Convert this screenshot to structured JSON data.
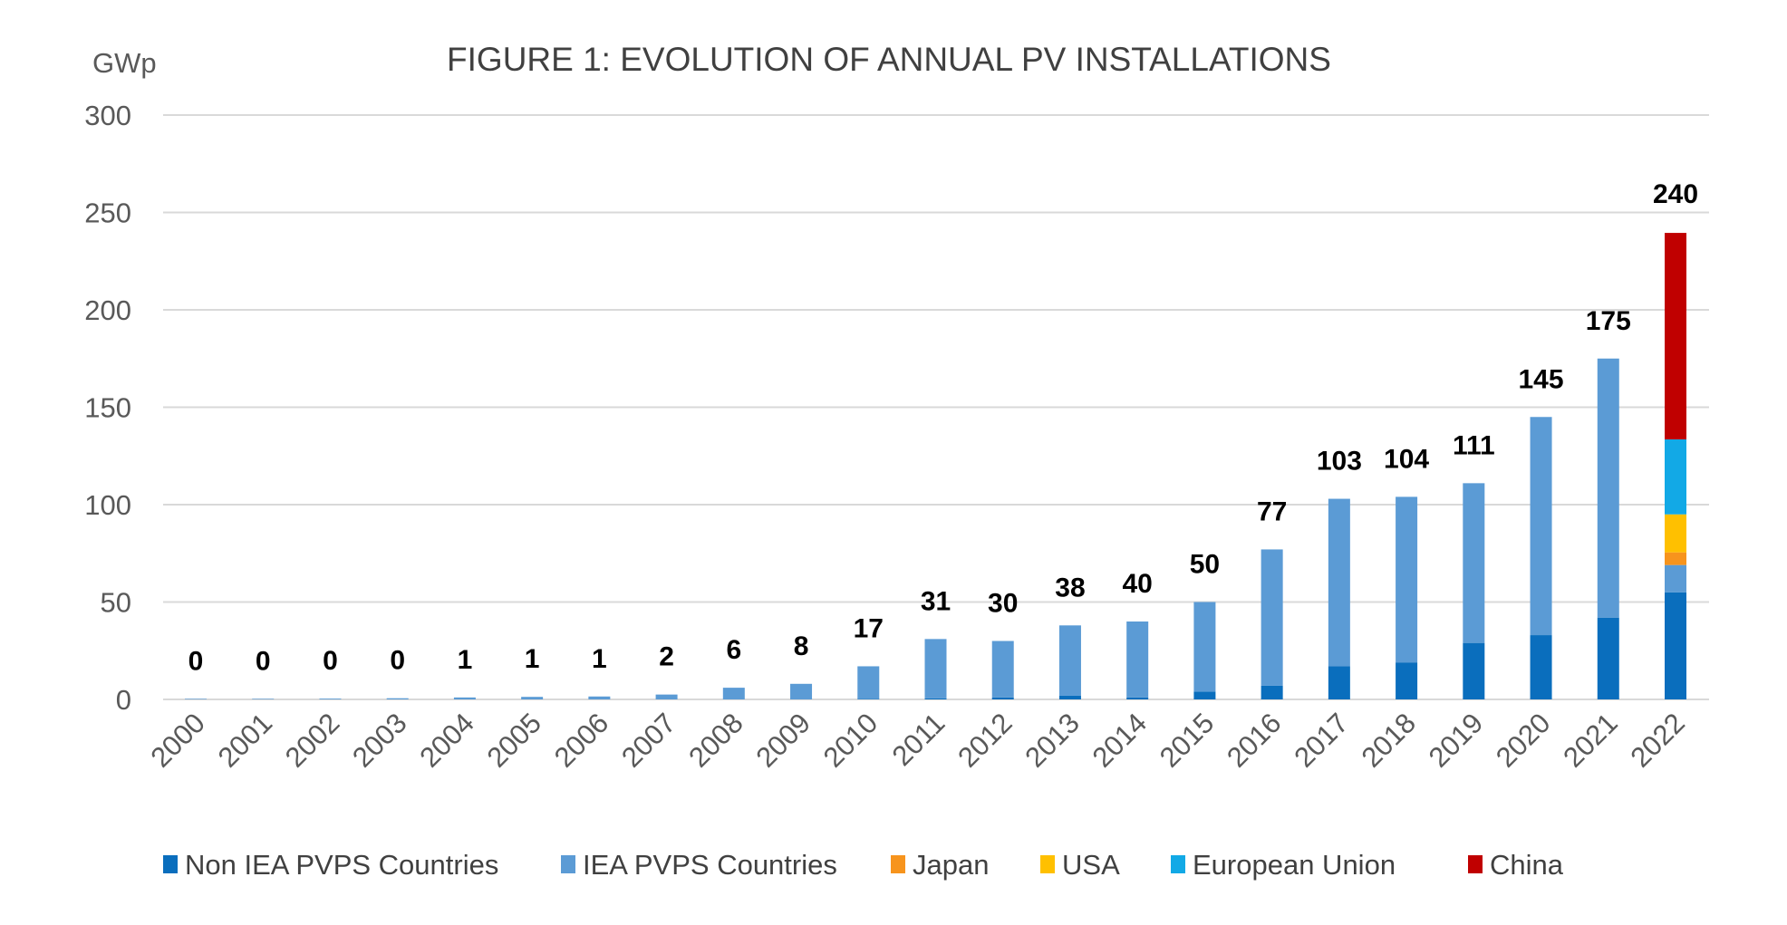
{
  "chart_data": {
    "type": "bar",
    "stacked": true,
    "title": "FIGURE 1: EVOLUTION OF ANNUAL PV INSTALLATIONS",
    "ylabel": "GWp",
    "xlabel": "",
    "ylim": [
      0,
      300
    ],
    "yticks": [
      0,
      50,
      100,
      150,
      200,
      250,
      300
    ],
    "grid": true,
    "legend_position": "bottom",
    "categories": [
      "2000",
      "2001",
      "2002",
      "2003",
      "2004",
      "2005",
      "2006",
      "2007",
      "2008",
      "2009",
      "2010",
      "2011",
      "2012",
      "2013",
      "2014",
      "2015",
      "2016",
      "2017",
      "2018",
      "2019",
      "2020",
      "2021",
      "2022"
    ],
    "totals": [
      0,
      0,
      0,
      0,
      1,
      1,
      1,
      2,
      6,
      8,
      17,
      31,
      30,
      38,
      40,
      50,
      77,
      103,
      104,
      111,
      145,
      175,
      240
    ],
    "series": [
      {
        "name": "Non IEA PVPS Countries",
        "color": "#0A6EBD",
        "values": [
          0,
          0,
          0,
          0,
          0,
          0,
          0,
          0,
          0,
          0,
          0.2,
          0.5,
          1,
          2,
          1,
          4,
          7,
          17,
          19,
          29,
          33,
          42,
          55
        ]
      },
      {
        "name": "IEA PVPS Countries",
        "color": "#5B9BD5",
        "values": [
          0.3,
          0.3,
          0.4,
          0.6,
          1,
          1.3,
          1.5,
          2.5,
          6,
          8,
          16.8,
          30.5,
          29,
          36,
          39,
          46,
          70,
          86,
          85,
          82,
          112,
          133,
          14
        ]
      },
      {
        "name": "Japan",
        "color": "#F7941D",
        "values": [
          0,
          0,
          0,
          0,
          0,
          0,
          0,
          0,
          0,
          0,
          0,
          0,
          0,
          0,
          0,
          0,
          0,
          0,
          0,
          0,
          0,
          0,
          6.5
        ]
      },
      {
        "name": "USA",
        "color": "#FFC000",
        "values": [
          0,
          0,
          0,
          0,
          0,
          0,
          0,
          0,
          0,
          0,
          0,
          0,
          0,
          0,
          0,
          0,
          0,
          0,
          0,
          0,
          0,
          0,
          19.5
        ]
      },
      {
        "name": "European Union",
        "color": "#12A9E6",
        "values": [
          0,
          0,
          0,
          0,
          0,
          0,
          0,
          0,
          0,
          0,
          0,
          0,
          0,
          0,
          0,
          0,
          0,
          0,
          0,
          0,
          0,
          0,
          38.5
        ]
      },
      {
        "name": "China",
        "color": "#C00000",
        "values": [
          0,
          0,
          0,
          0,
          0,
          0,
          0,
          0,
          0,
          0,
          0,
          0,
          0,
          0,
          0,
          0,
          0,
          0,
          0,
          0,
          0,
          0,
          106
        ]
      }
    ]
  }
}
